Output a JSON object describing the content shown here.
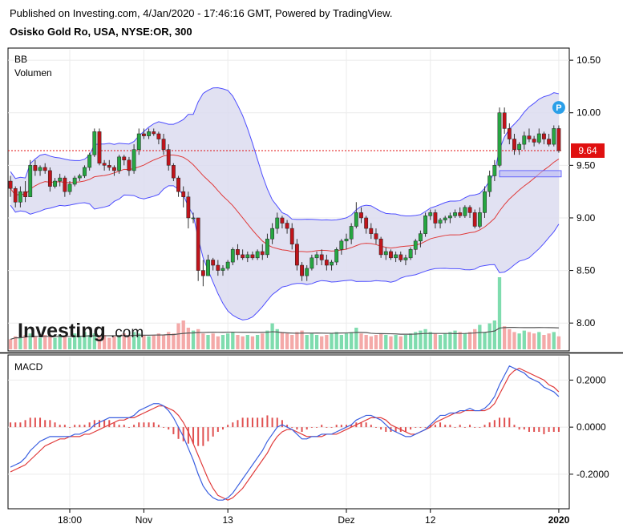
{
  "header": {
    "published": "Published on Investing.com, 4/Jan/2020 - 17:46:16 GMT, Powered by TradingView.",
    "symbol": "Osisko Gold Ro, USA, NYSE:OR, 300"
  },
  "colors": {
    "up": "#26a641",
    "down": "#c0141b",
    "band_fill": "#dcdcf0",
    "band_line": "#4d4dff",
    "basis_line": "#e03a3a",
    "price_line": "#e01010",
    "macd_line": "#3a5fe0",
    "signal_line": "#e03a3a",
    "hist": "#e05050",
    "vol_up": "#7fdcae",
    "vol_down": "#f4a9a8"
  },
  "logo": {
    "brand": "Investing",
    "suffix": ".com"
  },
  "chart_data": [
    {
      "type": "candlestick",
      "indicators": [
        "BB",
        "Volumen"
      ],
      "y_ticks": [
        "10.50",
        "10.00",
        "9.50",
        "9.00",
        "8.50",
        "8.00"
      ],
      "ylim": [
        7.75,
        10.6
      ],
      "last_price_label": "9.64",
      "last_price": 9.64,
      "x_ticks": [
        "18:00",
        "Nov",
        "13",
        "Dez",
        "12",
        "2020"
      ],
      "x_tick_positions": [
        12,
        27,
        44,
        68,
        85,
        111
      ],
      "marker_label": "P",
      "marker_index": 111,
      "candles": [
        [
          9.35,
          9.4,
          9.2,
          9.28
        ],
        [
          9.28,
          9.3,
          9.1,
          9.15
        ],
        [
          9.15,
          9.3,
          9.1,
          9.25
        ],
        [
          9.25,
          9.35,
          9.15,
          9.2
        ],
        [
          9.2,
          9.55,
          9.2,
          9.5
        ],
        [
          9.5,
          9.55,
          9.4,
          9.45
        ],
        [
          9.45,
          9.5,
          9.4,
          9.48
        ],
        [
          9.48,
          9.52,
          9.42,
          9.45
        ],
        [
          9.45,
          9.48,
          9.25,
          9.3
        ],
        [
          9.3,
          9.38,
          9.28,
          9.35
        ],
        [
          9.35,
          9.42,
          9.3,
          9.38
        ],
        [
          9.38,
          9.4,
          9.2,
          9.25
        ],
        [
          9.25,
          9.35,
          9.22,
          9.32
        ],
        [
          9.32,
          9.4,
          9.3,
          9.38
        ],
        [
          9.38,
          9.42,
          9.35,
          9.4
        ],
        [
          9.4,
          9.5,
          9.38,
          9.48
        ],
        [
          9.48,
          9.62,
          9.45,
          9.6
        ],
        [
          9.6,
          9.85,
          9.58,
          9.82
        ],
        [
          9.82,
          9.85,
          9.5,
          9.52
        ],
        [
          9.52,
          9.55,
          9.45,
          9.5
        ],
        [
          9.5,
          9.55,
          9.45,
          9.48
        ],
        [
          9.48,
          9.5,
          9.4,
          9.45
        ],
        [
          9.45,
          9.6,
          9.42,
          9.58
        ],
        [
          9.58,
          9.6,
          9.5,
          9.55
        ],
        [
          9.55,
          9.58,
          9.4,
          9.45
        ],
        [
          9.45,
          9.7,
          9.42,
          9.65
        ],
        [
          9.65,
          9.85,
          9.6,
          9.8
        ],
        [
          9.8,
          9.85,
          9.75,
          9.78
        ],
        [
          9.78,
          9.85,
          9.75,
          9.82
        ],
        [
          9.82,
          9.85,
          9.78,
          9.8
        ],
        [
          9.8,
          9.82,
          9.7,
          9.75
        ],
        [
          9.75,
          9.8,
          9.6,
          9.65
        ],
        [
          9.65,
          9.7,
          9.45,
          9.5
        ],
        [
          9.5,
          9.52,
          9.35,
          9.38
        ],
        [
          9.38,
          9.4,
          9.2,
          9.25
        ],
        [
          9.25,
          9.3,
          9.1,
          9.2
        ],
        [
          9.2,
          9.25,
          8.9,
          9.0
        ],
        [
          9.0,
          9.05,
          8.95,
          9.0
        ],
        [
          9.0,
          9.0,
          8.4,
          8.5
        ],
        [
          8.5,
          8.6,
          8.35,
          8.45
        ],
        [
          8.45,
          8.65,
          8.45,
          8.6
        ],
        [
          8.6,
          8.62,
          8.5,
          8.55
        ],
        [
          8.55,
          8.6,
          8.45,
          8.5
        ],
        [
          8.5,
          8.55,
          8.45,
          8.52
        ],
        [
          8.52,
          8.6,
          8.5,
          8.58
        ],
        [
          8.58,
          8.72,
          8.55,
          8.7
        ],
        [
          8.7,
          8.75,
          8.6,
          8.65
        ],
        [
          8.65,
          8.7,
          8.6,
          8.62
        ],
        [
          8.62,
          8.68,
          8.58,
          8.65
        ],
        [
          8.65,
          8.68,
          8.6,
          8.62
        ],
        [
          8.62,
          8.7,
          8.6,
          8.68
        ],
        [
          8.68,
          8.75,
          8.6,
          8.65
        ],
        [
          8.65,
          8.85,
          8.62,
          8.8
        ],
        [
          8.8,
          8.95,
          8.75,
          8.9
        ],
        [
          8.9,
          9.05,
          8.85,
          9.0
        ],
        [
          9.0,
          9.02,
          8.9,
          8.95
        ],
        [
          8.95,
          8.98,
          8.85,
          8.9
        ],
        [
          8.9,
          8.95,
          8.7,
          8.75
        ],
        [
          8.75,
          8.8,
          8.5,
          8.55
        ],
        [
          8.55,
          8.58,
          8.4,
          8.45
        ],
        [
          8.45,
          8.55,
          8.4,
          8.52
        ],
        [
          8.52,
          8.65,
          8.5,
          8.62
        ],
        [
          8.62,
          8.68,
          8.55,
          8.65
        ],
        [
          8.65,
          8.7,
          8.55,
          8.6
        ],
        [
          8.6,
          8.65,
          8.5,
          8.55
        ],
        [
          8.55,
          8.6,
          8.5,
          8.58
        ],
        [
          8.58,
          8.72,
          8.55,
          8.7
        ],
        [
          8.7,
          8.8,
          8.65,
          8.78
        ],
        [
          8.78,
          8.85,
          8.7,
          8.8
        ],
        [
          8.8,
          8.95,
          8.75,
          8.92
        ],
        [
          8.92,
          9.15,
          8.9,
          9.05
        ],
        [
          9.05,
          9.1,
          8.95,
          9.0
        ],
        [
          9.0,
          9.02,
          8.85,
          8.9
        ],
        [
          8.9,
          8.95,
          8.8,
          8.85
        ],
        [
          8.85,
          8.9,
          8.75,
          8.8
        ],
        [
          8.8,
          8.82,
          8.62,
          8.65
        ],
        [
          8.65,
          8.72,
          8.6,
          8.68
        ],
        [
          8.68,
          8.7,
          8.6,
          8.62
        ],
        [
          8.62,
          8.68,
          8.58,
          8.65
        ],
        [
          8.65,
          8.68,
          8.58,
          8.6
        ],
        [
          8.6,
          8.65,
          8.55,
          8.62
        ],
        [
          8.62,
          8.72,
          8.6,
          8.7
        ],
        [
          8.7,
          8.8,
          8.65,
          8.78
        ],
        [
          8.78,
          8.88,
          8.72,
          8.85
        ],
        [
          8.85,
          9.05,
          8.82,
          9.02
        ],
        [
          9.02,
          9.08,
          8.98,
          9.05
        ],
        [
          9.05,
          9.08,
          8.9,
          8.95
        ],
        [
          8.95,
          9.0,
          8.9,
          8.98
        ],
        [
          8.98,
          9.02,
          8.95,
          9.0
        ],
        [
          9.0,
          9.05,
          8.95,
          9.02
        ],
        [
          9.02,
          9.08,
          9.0,
          9.05
        ],
        [
          9.05,
          9.1,
          9.0,
          9.02
        ],
        [
          9.02,
          9.12,
          9.0,
          9.1
        ],
        [
          9.1,
          9.12,
          9.0,
          9.05
        ],
        [
          9.05,
          9.08,
          8.9,
          8.92
        ],
        [
          8.92,
          9.1,
          8.9,
          9.05
        ],
        [
          9.05,
          9.3,
          9.0,
          9.25
        ],
        [
          9.25,
          9.45,
          9.2,
          9.4
        ],
        [
          9.4,
          9.55,
          9.35,
          9.5
        ],
        [
          9.5,
          10.05,
          9.48,
          10.0
        ],
        [
          10.0,
          10.05,
          9.8,
          9.85
        ],
        [
          9.85,
          9.9,
          9.7,
          9.75
        ],
        [
          9.75,
          9.8,
          9.6,
          9.65
        ],
        [
          9.65,
          9.72,
          9.6,
          9.7
        ],
        [
          9.7,
          9.82,
          9.65,
          9.78
        ],
        [
          9.78,
          9.85,
          9.72,
          9.75
        ],
        [
          9.75,
          9.78,
          9.68,
          9.72
        ],
        [
          9.72,
          9.85,
          9.7,
          9.8
        ],
        [
          9.8,
          9.82,
          9.7,
          9.75
        ],
        [
          9.75,
          9.8,
          9.68,
          9.7
        ],
        [
          9.7,
          9.88,
          9.68,
          9.85
        ],
        [
          9.85,
          9.88,
          9.62,
          9.64
        ]
      ],
      "volume": [
        0.35,
        0.45,
        0.4,
        0.5,
        0.55,
        0.45,
        0.4,
        0.5,
        0.45,
        0.4,
        0.5,
        0.45,
        0.4,
        0.55,
        0.45,
        0.6,
        0.5,
        0.55,
        0.45,
        0.5,
        0.4,
        0.45,
        0.5,
        0.55,
        0.45,
        0.6,
        0.55,
        0.5,
        0.45,
        0.5,
        0.55,
        0.5,
        0.6,
        0.55,
        0.9,
        1.0,
        0.75,
        0.65,
        0.7,
        0.55,
        0.5,
        0.55,
        0.45,
        0.5,
        0.55,
        0.6,
        0.5,
        0.45,
        0.5,
        0.45,
        0.5,
        0.55,
        0.65,
        0.9,
        0.7,
        0.6,
        0.55,
        0.5,
        0.6,
        0.65,
        0.5,
        0.55,
        0.5,
        0.45,
        0.5,
        0.55,
        0.6,
        0.5,
        0.55,
        0.6,
        0.75,
        0.55,
        0.5,
        0.45,
        0.5,
        0.55,
        0.5,
        0.45,
        0.5,
        0.45,
        0.5,
        0.55,
        0.6,
        0.65,
        0.7,
        0.6,
        0.55,
        0.5,
        0.55,
        0.6,
        0.65,
        0.6,
        0.55,
        0.6,
        0.7,
        0.85,
        0.6,
        0.9,
        1.0,
        2.5,
        0.8,
        0.7,
        0.6,
        0.55,
        0.65,
        0.6,
        0.55,
        0.6,
        0.5,
        0.55,
        0.6,
        0.45
      ]
    },
    {
      "type": "line",
      "indicator": "MACD",
      "title": "MACD",
      "y_ticks": [
        "0.2000",
        "0.0000",
        "-0.2000"
      ],
      "ylim": [
        -0.34,
        0.3
      ],
      "macd": [
        -0.17,
        -0.16,
        -0.15,
        -0.13,
        -0.1,
        -0.08,
        -0.06,
        -0.05,
        -0.04,
        -0.04,
        -0.04,
        -0.04,
        -0.04,
        -0.03,
        -0.03,
        -0.02,
        -0.01,
        0.01,
        0.02,
        0.03,
        0.04,
        0.04,
        0.04,
        0.04,
        0.04,
        0.05,
        0.07,
        0.08,
        0.09,
        0.1,
        0.1,
        0.09,
        0.07,
        0.04,
        0.0,
        -0.04,
        -0.09,
        -0.14,
        -0.2,
        -0.25,
        -0.28,
        -0.3,
        -0.31,
        -0.31,
        -0.3,
        -0.28,
        -0.25,
        -0.22,
        -0.19,
        -0.16,
        -0.13,
        -0.1,
        -0.06,
        -0.03,
        0.0,
        0.01,
        0.0,
        -0.01,
        -0.03,
        -0.05,
        -0.05,
        -0.04,
        -0.04,
        -0.03,
        -0.03,
        -0.03,
        -0.02,
        -0.01,
        0.0,
        0.01,
        0.03,
        0.04,
        0.05,
        0.05,
        0.04,
        0.03,
        0.01,
        -0.01,
        -0.02,
        -0.03,
        -0.04,
        -0.04,
        -0.03,
        -0.02,
        -0.01,
        0.01,
        0.03,
        0.05,
        0.05,
        0.06,
        0.06,
        0.07,
        0.07,
        0.08,
        0.07,
        0.07,
        0.08,
        0.1,
        0.13,
        0.18,
        0.22,
        0.26,
        0.25,
        0.24,
        0.23,
        0.21,
        0.2,
        0.19,
        0.17,
        0.16,
        0.15,
        0.13
      ],
      "signal": [
        -0.19,
        -0.18,
        -0.17,
        -0.16,
        -0.14,
        -0.12,
        -0.1,
        -0.08,
        -0.07,
        -0.06,
        -0.05,
        -0.05,
        -0.04,
        -0.04,
        -0.04,
        -0.03,
        -0.03,
        -0.02,
        -0.01,
        0.0,
        0.01,
        0.02,
        0.03,
        0.03,
        0.04,
        0.04,
        0.05,
        0.06,
        0.07,
        0.08,
        0.09,
        0.09,
        0.08,
        0.07,
        0.05,
        0.02,
        -0.02,
        -0.07,
        -0.12,
        -0.17,
        -0.22,
        -0.26,
        -0.29,
        -0.3,
        -0.31,
        -0.3,
        -0.28,
        -0.26,
        -0.23,
        -0.2,
        -0.17,
        -0.14,
        -0.11,
        -0.07,
        -0.04,
        -0.02,
        -0.01,
        -0.01,
        -0.02,
        -0.03,
        -0.04,
        -0.04,
        -0.04,
        -0.04,
        -0.03,
        -0.03,
        -0.03,
        -0.02,
        -0.01,
        0.0,
        0.01,
        0.02,
        0.03,
        0.04,
        0.04,
        0.04,
        0.03,
        0.01,
        0.0,
        -0.01,
        -0.02,
        -0.03,
        -0.03,
        -0.02,
        -0.01,
        0.0,
        0.02,
        0.03,
        0.04,
        0.05,
        0.06,
        0.06,
        0.07,
        0.07,
        0.07,
        0.07,
        0.07,
        0.08,
        0.1,
        0.14,
        0.18,
        0.22,
        0.24,
        0.25,
        0.24,
        0.23,
        0.22,
        0.21,
        0.2,
        0.18,
        0.17,
        0.15
      ],
      "histogram": [
        0.02,
        0.02,
        0.02,
        0.03,
        0.04,
        0.04,
        0.04,
        0.03,
        0.03,
        0.02,
        0.01,
        0.01,
        0.0,
        0.01,
        0.01,
        0.01,
        0.02,
        0.03,
        0.03,
        0.03,
        0.03,
        0.02,
        0.01,
        0.01,
        0.0,
        0.01,
        0.02,
        0.02,
        0.02,
        0.02,
        0.01,
        0.0,
        -0.01,
        -0.03,
        -0.05,
        -0.06,
        -0.07,
        -0.07,
        -0.08,
        -0.08,
        -0.06,
        -0.04,
        -0.02,
        -0.01,
        0.01,
        0.02,
        0.03,
        0.04,
        0.04,
        0.04,
        0.04,
        0.04,
        0.05,
        0.04,
        0.04,
        0.03,
        0.01,
        0.0,
        -0.01,
        -0.02,
        -0.01,
        0.0,
        0.0,
        0.01,
        0.0,
        0.0,
        0.01,
        0.01,
        0.01,
        0.01,
        0.02,
        0.02,
        0.02,
        0.01,
        0.0,
        -0.01,
        -0.02,
        -0.02,
        -0.02,
        -0.02,
        -0.02,
        -0.01,
        0.0,
        0.0,
        0.0,
        0.01,
        0.01,
        0.02,
        0.01,
        0.01,
        0.0,
        0.01,
        0.0,
        0.01,
        0.0,
        0.0,
        0.01,
        0.02,
        0.03,
        0.04,
        0.04,
        0.04,
        0.01,
        -0.01,
        -0.01,
        -0.02,
        -0.02,
        -0.02,
        -0.03,
        -0.02,
        -0.02,
        -0.02
      ]
    }
  ]
}
